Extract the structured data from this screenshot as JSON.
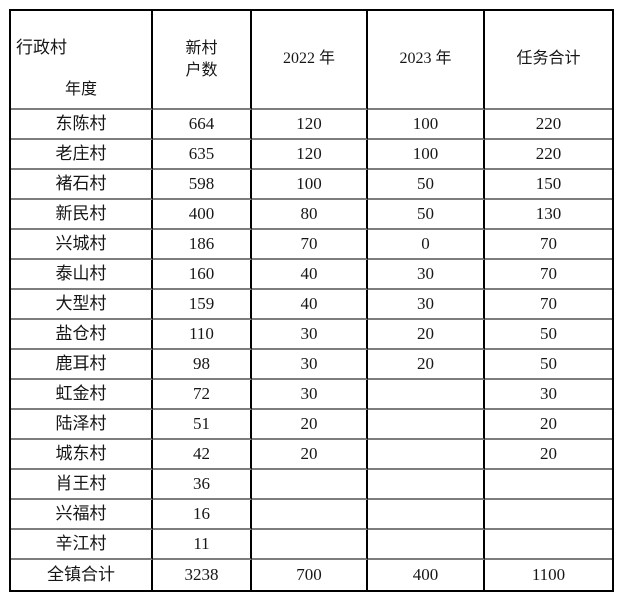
{
  "table": {
    "header": {
      "corner_top": "行政村",
      "corner_bottom": "年度",
      "col2_line1": "新村",
      "col2_line2": "户数",
      "col3": "2022 年",
      "col4": "2023 年",
      "col5": "任务合计"
    },
    "rows": [
      {
        "village": "东陈村",
        "households": "664",
        "y2022": "120",
        "y2023": "100",
        "total": "220"
      },
      {
        "village": "老庄村",
        "households": "635",
        "y2022": "120",
        "y2023": "100",
        "total": "220"
      },
      {
        "village": "褚石村",
        "households": "598",
        "y2022": "100",
        "y2023": "50",
        "total": "150"
      },
      {
        "village": "新民村",
        "households": "400",
        "y2022": "80",
        "y2023": "50",
        "total": "130"
      },
      {
        "village": "兴城村",
        "households": "186",
        "y2022": "70",
        "y2023": "0",
        "total": "70"
      },
      {
        "village": "泰山村",
        "households": "160",
        "y2022": "40",
        "y2023": "30",
        "total": "70"
      },
      {
        "village": "大型村",
        "households": "159",
        "y2022": "40",
        "y2023": "30",
        "total": "70"
      },
      {
        "village": "盐仓村",
        "households": "110",
        "y2022": "30",
        "y2023": "20",
        "total": "50"
      },
      {
        "village": "鹿耳村",
        "households": "98",
        "y2022": "30",
        "y2023": "20",
        "total": "50"
      },
      {
        "village": "虹金村",
        "households": "72",
        "y2022": "30",
        "y2023": "",
        "total": "30"
      },
      {
        "village": "陆泽村",
        "households": "51",
        "y2022": "20",
        "y2023": "",
        "total": "20"
      },
      {
        "village": "城东村",
        "households": "42",
        "y2022": "20",
        "y2023": "",
        "total": "20"
      },
      {
        "village": "肖王村",
        "households": "36",
        "y2022": "",
        "y2023": "",
        "total": ""
      },
      {
        "village": "兴福村",
        "households": "16",
        "y2022": "",
        "y2023": "",
        "total": ""
      },
      {
        "village": "辛江村",
        "households": "11",
        "y2022": "",
        "y2023": "",
        "total": ""
      },
      {
        "village": "全镇合计",
        "households": "3238",
        "y2022": "700",
        "y2023": "400",
        "total": "1100"
      }
    ],
    "colors": {
      "outer_border": "#000000",
      "inner_vertical_border": "#000000",
      "inner_horizontal_border": "#7d7d7d",
      "text": "#161616",
      "background": "#ffffff"
    }
  }
}
